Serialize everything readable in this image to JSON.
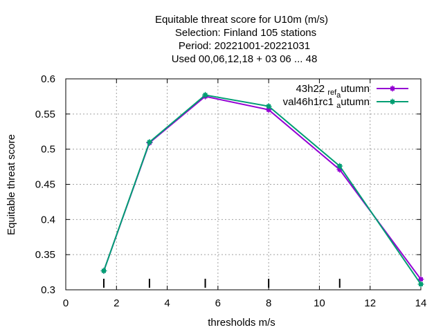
{
  "chart_data": {
    "type": "line",
    "title_lines": [
      "Equitable threat score  for U10m (m/s)",
      "Selection: Finland    105 stations",
      "Period: 20221001-20221031",
      "Used  00,06,12,18  + 03 06 ... 48"
    ],
    "xlabel": "thresholds m/s",
    "ylabel": "Equitable threat score",
    "xlim": [
      0,
      14
    ],
    "ylim": [
      0.3,
      0.6
    ],
    "xticks": [
      "0",
      "2",
      "4",
      "6",
      "8",
      "10",
      "12",
      "14"
    ],
    "yticks": [
      "0.3",
      "0.35",
      "0.4",
      "0.45",
      "0.5",
      "0.55",
      "0.6"
    ],
    "grid": true,
    "legend_position": "top-right",
    "threshold_markers": [
      1.5,
      3.3,
      5.5,
      8.0,
      10.8
    ],
    "series": [
      {
        "name": "43h22_ref_autumn",
        "legend_parts": [
          "43h22 ",
          "ref",
          "a",
          "utumn"
        ],
        "color": "#9400d3",
        "x": [
          1.5,
          3.3,
          5.5,
          8.0,
          10.8,
          14.0
        ],
        "y": [
          0.327,
          0.509,
          0.575,
          0.556,
          0.471,
          0.315
        ]
      },
      {
        "name": "val46h1rc1_autumn",
        "legend_parts": [
          "val46h1rc1 ",
          "",
          "a",
          "utumn"
        ],
        "color": "#009e73",
        "x": [
          1.5,
          3.3,
          5.5,
          8.0,
          10.8,
          14.0
        ],
        "y": [
          0.327,
          0.51,
          0.577,
          0.561,
          0.476,
          0.308
        ]
      }
    ]
  }
}
